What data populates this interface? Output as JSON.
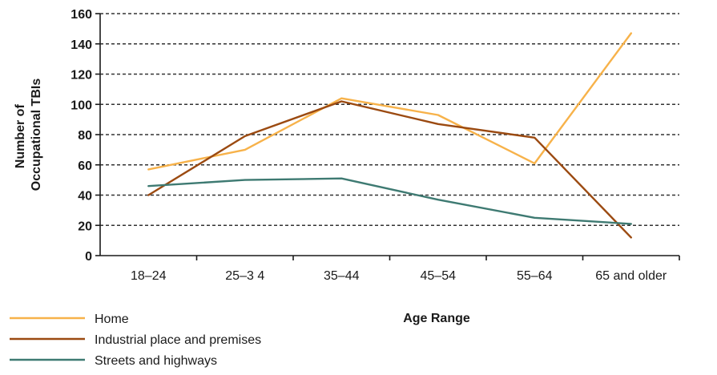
{
  "chart_data": {
    "type": "line",
    "title": "",
    "xlabel": "Age Range",
    "ylabel_lines": [
      "Number of",
      "Occupational TBIs"
    ],
    "categories": [
      "18–24",
      "25–3 4",
      "35–44",
      "45–54",
      "55–64",
      "65 and older"
    ],
    "ylim": [
      0,
      160
    ],
    "yticks": [
      0,
      20,
      40,
      60,
      80,
      100,
      120,
      140,
      160
    ],
    "grid": true,
    "legend_position": "bottom-left",
    "series": [
      {
        "name": "Home",
        "color": "#f7b24a",
        "values": [
          57,
          70,
          104,
          93,
          61,
          147
        ]
      },
      {
        "name": "Industrial place and premises",
        "color": "#9b4a11",
        "values": [
          40,
          79,
          102,
          87,
          78,
          12
        ]
      },
      {
        "name": "Streets and highways",
        "color": "#3e7a72",
        "values": [
          46,
          50,
          51,
          37,
          25,
          21
        ]
      }
    ]
  }
}
